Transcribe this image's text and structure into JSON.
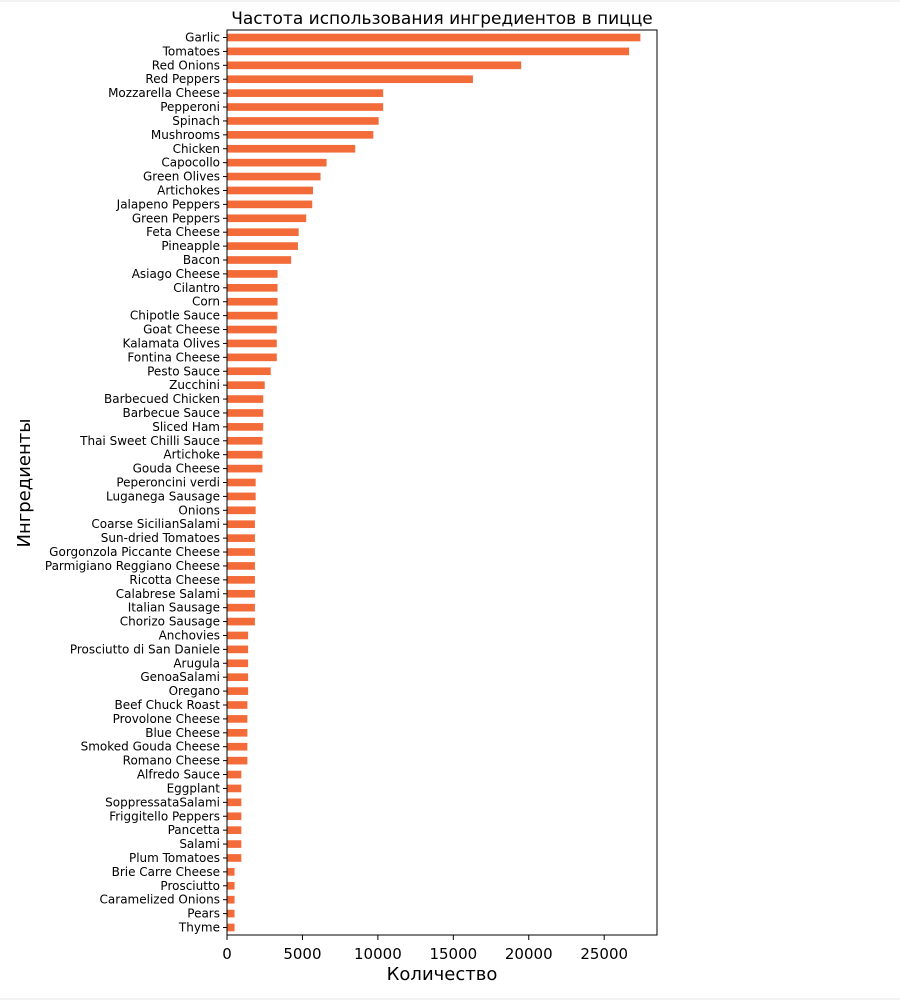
{
  "chart_data": {
    "type": "bar",
    "orientation": "horizontal",
    "title": "Частота использования ингредиентов в пицце",
    "xlabel": "Количество",
    "ylabel": "Ингредиенты",
    "xlim": [
      0,
      28500
    ],
    "xticks": [
      0,
      5000,
      10000,
      15000,
      20000,
      25000
    ],
    "xtick_labels": [
      "0",
      "5000",
      "10000",
      "15000",
      "20000",
      "25000"
    ],
    "grid": false,
    "bar_color": "#f26b38",
    "categories": [
      "Garlic",
      "Tomatoes",
      "Red Onions",
      "Red Peppers",
      "Mozzarella Cheese",
      "Pepperoni",
      "Spinach",
      "Mushrooms",
      "Chicken",
      "Capocollo",
      "Green Olives",
      "Artichokes",
      "Jalapeno Peppers",
      "Green Peppers",
      "Feta Cheese",
      "Pineapple",
      "Bacon",
      "Asiago Cheese",
      "Cilantro",
      "Corn",
      "Chipotle Sauce",
      "Goat Cheese",
      "Kalamata Olives",
      "Fontina Cheese",
      "Pesto Sauce",
      "Zucchini",
      "Barbecued Chicken",
      "Barbecue Sauce",
      "Sliced Ham",
      "Thai Sweet Chilli Sauce",
      "Artichoke",
      "Gouda Cheese",
      "Peperoncini verdi",
      "Luganega Sausage",
      "Onions",
      "Coarse SicilianSalami",
      "Sun-dried Tomatoes",
      "Gorgonzola Piccante Cheese",
      "Parmigiano Reggiano Cheese",
      "Ricotta Cheese",
      "Calabrese Salami",
      "Italian Sausage",
      "Chorizo Sausage",
      "Anchovies",
      "Prosciutto di San Daniele",
      "Arugula",
      "GenoaSalami",
      "Oregano",
      "Beef Chuck Roast",
      "Provolone Cheese",
      "Blue Cheese",
      "Smoked Gouda Cheese",
      "Romano Cheese",
      "Alfredo Sauce",
      "Eggplant",
      "SoppressataSalami",
      "Friggitello Peppers",
      "Pancetta",
      "Salami",
      "Plum Tomatoes",
      "Brie Carre Cheese",
      "Prosciutto",
      "Caramelized Onions",
      "Pears",
      "Thyme"
    ],
    "values": [
      27400,
      26650,
      19500,
      16300,
      10350,
      10350,
      10050,
      9700,
      8500,
      6600,
      6200,
      5700,
      5650,
      5250,
      4750,
      4700,
      4250,
      3350,
      3350,
      3350,
      3350,
      3300,
      3300,
      3300,
      2900,
      2500,
      2400,
      2400,
      2400,
      2350,
      2350,
      2350,
      1900,
      1900,
      1900,
      1850,
      1850,
      1850,
      1850,
      1850,
      1850,
      1850,
      1850,
      1400,
      1400,
      1400,
      1400,
      1400,
      1350,
      1350,
      1350,
      1350,
      1350,
      950,
      950,
      950,
      950,
      950,
      950,
      950,
      500,
      500,
      500,
      500,
      500
    ]
  }
}
